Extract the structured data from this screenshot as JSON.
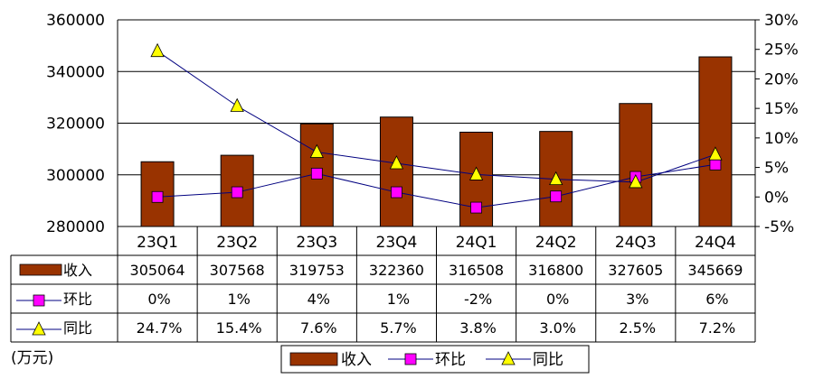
{
  "chart_data": {
    "type": "bar",
    "categories": [
      "23Q1",
      "23Q2",
      "23Q3",
      "23Q4",
      "24Q1",
      "24Q2",
      "24Q3",
      "24Q4"
    ],
    "series": [
      {
        "name": "收入",
        "type": "bar",
        "axis": "left",
        "color": "#993300",
        "values": [
          305064,
          307568,
          319753,
          322360,
          316508,
          316800,
          327605,
          345669
        ],
        "labels": [
          "305064",
          "307568",
          "319753",
          "322360",
          "316508",
          "316800",
          "327605",
          "345669"
        ]
      },
      {
        "name": "环比",
        "type": "line",
        "axis": "right",
        "color": "#000080",
        "marker": "square",
        "marker_color": "#ff00ff",
        "values": [
          0,
          0.8,
          3.96,
          0.8,
          -1.8,
          0.09,
          3.4,
          5.5
        ],
        "labels": [
          "0%",
          "1%",
          "4%",
          "1%",
          "-2%",
          "0%",
          "3%",
          "6%"
        ]
      },
      {
        "name": "同比",
        "type": "line",
        "axis": "right",
        "color": "#000080",
        "marker": "triangle",
        "marker_color": "#ffff00",
        "values": [
          24.7,
          15.4,
          7.6,
          5.7,
          3.8,
          3.0,
          2.5,
          7.2
        ],
        "labels": [
          "24.7%",
          "15.4%",
          "7.6%",
          "5.7%",
          "3.8%",
          "3.0%",
          "2.5%",
          "7.2%"
        ]
      }
    ],
    "y_left": {
      "min": 280000,
      "max": 360000,
      "ticks": [
        "280000",
        "300000",
        "320000",
        "340000",
        "360000"
      ]
    },
    "y_right": {
      "min": -5,
      "max": 30,
      "ticks": [
        "-5%",
        "0%",
        "5%",
        "10%",
        "15%",
        "20%",
        "25%",
        "30%"
      ]
    },
    "unit_label": "(万元)",
    "legend_position": "bottom",
    "grid": true
  }
}
